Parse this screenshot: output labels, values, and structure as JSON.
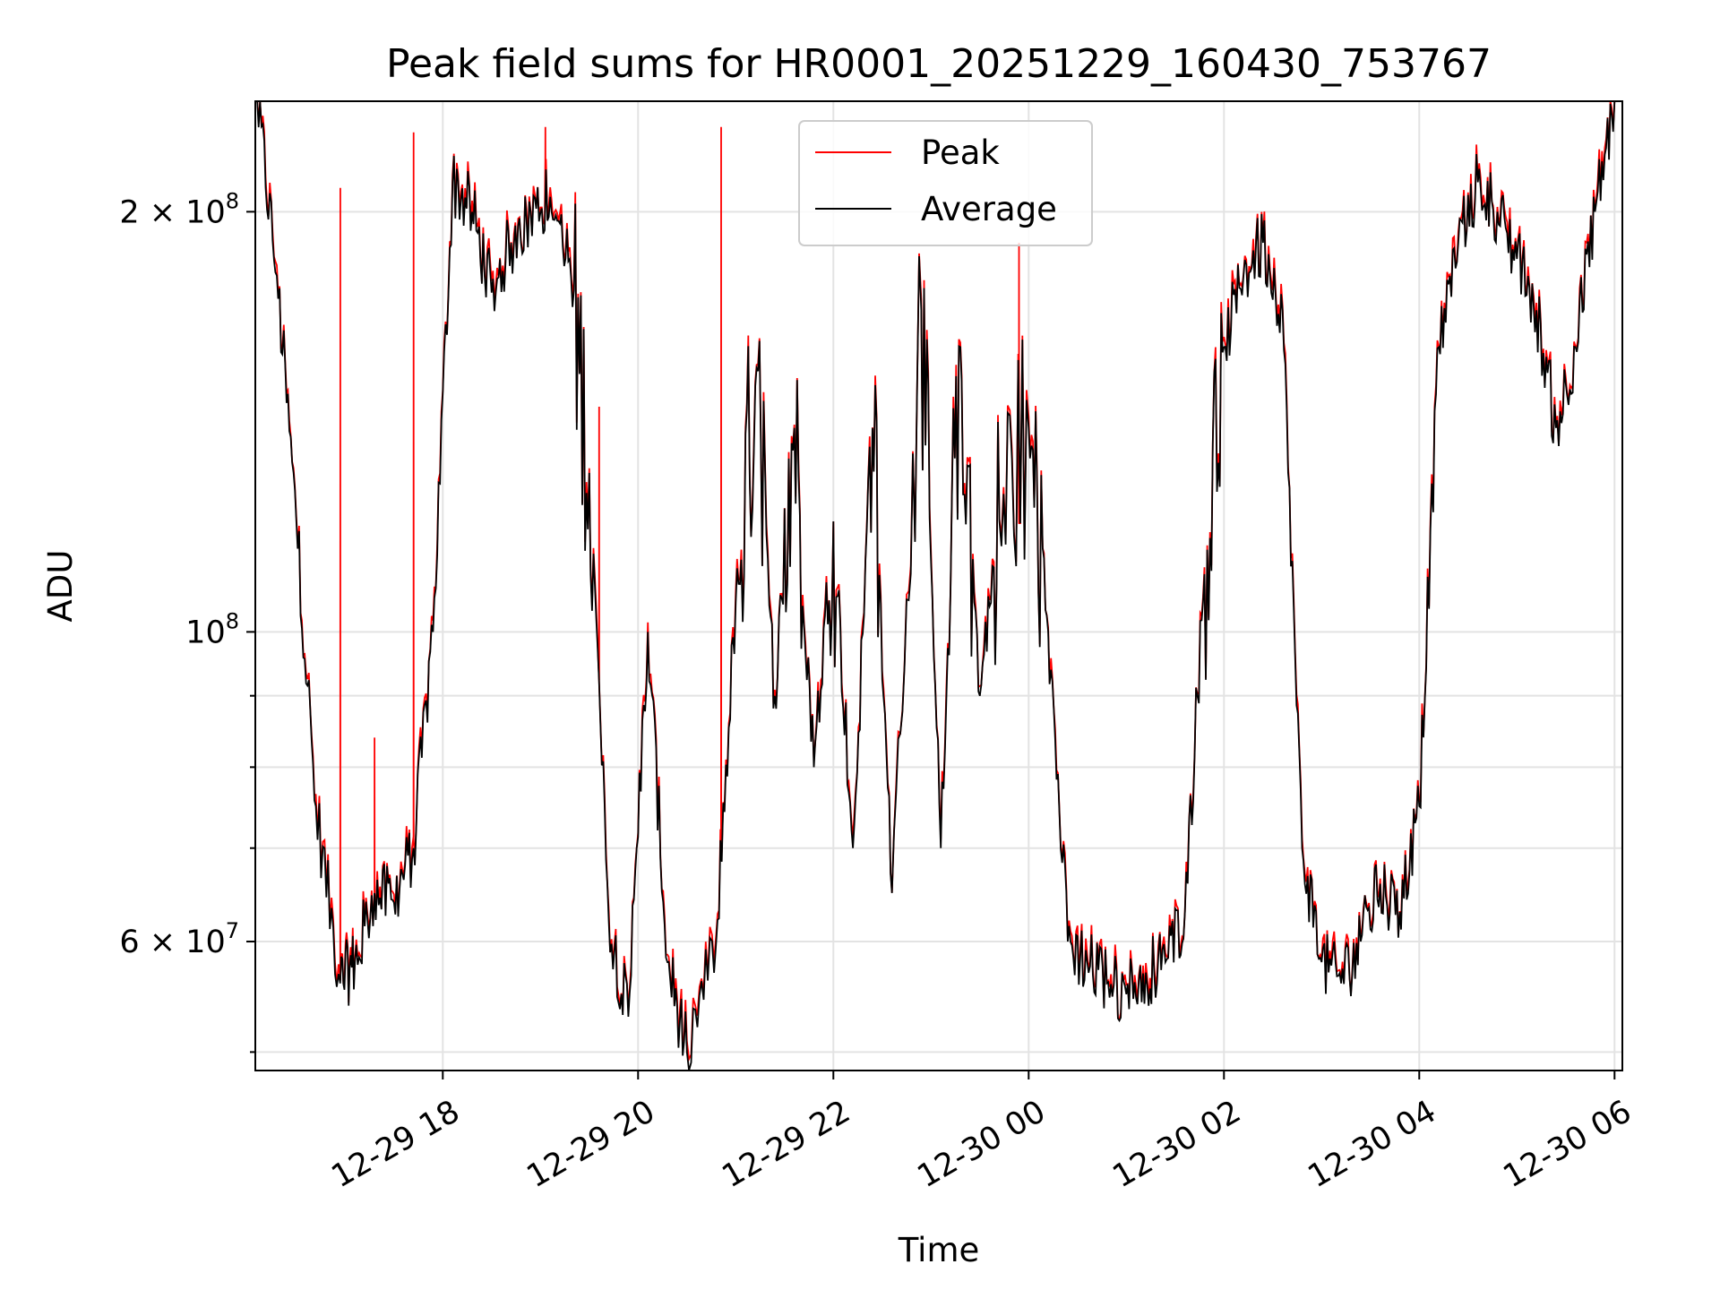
{
  "chart_data": {
    "type": "line",
    "title": "Peak field sums for HR0001_20251229_160430_753767",
    "xlabel": "Time",
    "ylabel": "ADU",
    "yscale": "log",
    "ylim": [
      48500000,
      240000000
    ],
    "xlim_hours": [
      16.08,
      30.08
    ],
    "grid": true,
    "legend_position": "upper-center",
    "x_ticks": [
      {
        "hour": 18,
        "label": "12-29 18"
      },
      {
        "hour": 20,
        "label": "12-29 20"
      },
      {
        "hour": 22,
        "label": "12-29 22"
      },
      {
        "hour": 24,
        "label": "12-30 00"
      },
      {
        "hour": 26,
        "label": "12-30 02"
      },
      {
        "hour": 28,
        "label": "12-30 04"
      },
      {
        "hour": 30,
        "label": "12-30 06"
      }
    ],
    "y_major_ticks": [
      {
        "value": 60000000,
        "mant": "6",
        "exp": "7"
      },
      {
        "value": 100000000,
        "mant": "",
        "exp": "8"
      },
      {
        "value": 200000000,
        "mant": "2",
        "exp": "8"
      }
    ],
    "y_minor_ticks": [
      50000000,
      70000000,
      80000000,
      90000000
    ],
    "series": [
      {
        "name": "Average",
        "color": "#000000",
        "hours": [
          16.1,
          16.3,
          16.5,
          16.7,
          16.95,
          17.1,
          17.3,
          17.5,
          17.7,
          17.9,
          18.1,
          18.3,
          18.5,
          18.7,
          18.9,
          19.1,
          19.3,
          19.5,
          19.7,
          19.9,
          20.1,
          20.3,
          20.5,
          20.8,
          21.0,
          21.2,
          21.4,
          21.6,
          21.8,
          22.0,
          22.2,
          22.4,
          22.6,
          22.9,
          23.1,
          23.3,
          23.5,
          23.7,
          24.0,
          24.2,
          24.4,
          24.6,
          24.8,
          25.0,
          25.2,
          25.4,
          25.6,
          25.8,
          26.0,
          26.2,
          26.4,
          26.6,
          26.8,
          27.0,
          27.2,
          27.4,
          27.6,
          27.8,
          28.0,
          28.2,
          28.4,
          28.6,
          28.8,
          29.0,
          29.2,
          29.4,
          29.6,
          29.8,
          30.0
        ],
        "values": [
          240000000,
          180000000,
          120000000,
          75000000,
          56000000,
          58000000,
          65000000,
          64000000,
          70000000,
          100000000,
          210000000,
          200000000,
          175000000,
          190000000,
          200000000,
          205000000,
          185000000,
          130000000,
          62000000,
          53000000,
          100000000,
          58000000,
          50000000,
          60000000,
          105000000,
          150000000,
          90000000,
          140000000,
          80000000,
          120000000,
          70000000,
          140000000,
          65000000,
          170000000,
          70000000,
          160000000,
          90000000,
          120000000,
          140000000,
          100000000,
          60000000,
          58000000,
          56000000,
          55000000,
          57000000,
          58000000,
          63000000,
          110000000,
          160000000,
          180000000,
          190000000,
          170000000,
          70000000,
          58000000,
          56000000,
          60000000,
          66000000,
          63000000,
          75000000,
          160000000,
          190000000,
          210000000,
          200000000,
          185000000,
          170000000,
          140000000,
          160000000,
          200000000,
          240000000
        ]
      },
      {
        "name": "Peak",
        "color": "#ff0000",
        "spikes": [
          {
            "hour": 16.95,
            "value": 208000000
          },
          {
            "hour": 17.3,
            "value": 84000000
          },
          {
            "hour": 17.7,
            "value": 228000000
          },
          {
            "hour": 19.05,
            "value": 230000000
          },
          {
            "hour": 19.6,
            "value": 145000000
          },
          {
            "hour": 20.85,
            "value": 230000000
          },
          {
            "hour": 23.9,
            "value": 190000000
          }
        ]
      }
    ]
  }
}
